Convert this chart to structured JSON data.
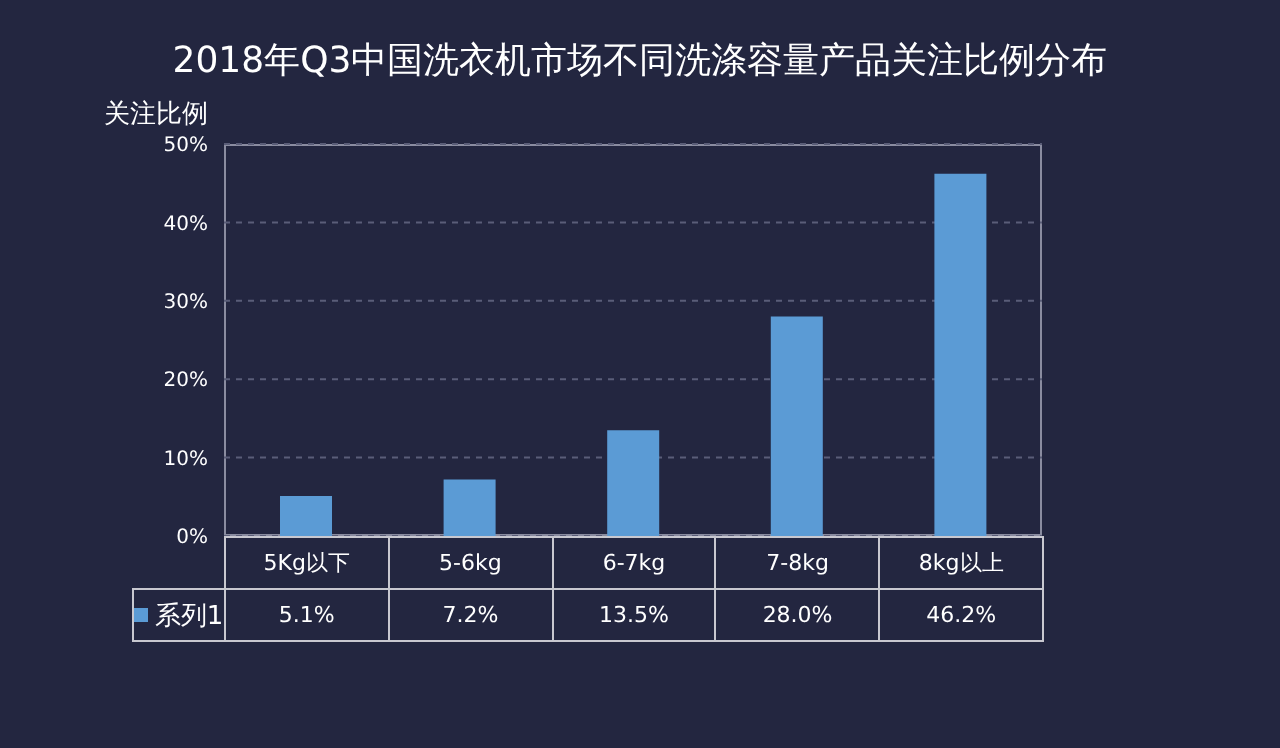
{
  "chart_data": {
    "type": "bar",
    "title": "2018年Q3中国洗衣机市场不同洗涤容量产品关注比例分布",
    "ylabel": "关注比例",
    "categories": [
      "5Kg以下",
      "5-6kg",
      "6-7kg",
      "7-8kg",
      "8kg以上"
    ],
    "series": [
      {
        "name": "系列1",
        "color": "#5b9bd5",
        "values": [
          5.1,
          7.2,
          13.5,
          28.0,
          46.2
        ]
      }
    ],
    "value_labels": [
      "5.1%",
      "7.2%",
      "13.5%",
      "28.0%",
      "46.2%"
    ],
    "ylim": [
      0,
      50
    ],
    "yticks": [
      {
        "value": 0,
        "label": "0%"
      },
      {
        "value": 10,
        "label": "10%"
      },
      {
        "value": 20,
        "label": "20%"
      },
      {
        "value": 30,
        "label": "30%"
      },
      {
        "value": 40,
        "label": "40%"
      },
      {
        "value": 50,
        "label": "50%"
      }
    ],
    "grid": "y",
    "legend": "bottom left"
  }
}
